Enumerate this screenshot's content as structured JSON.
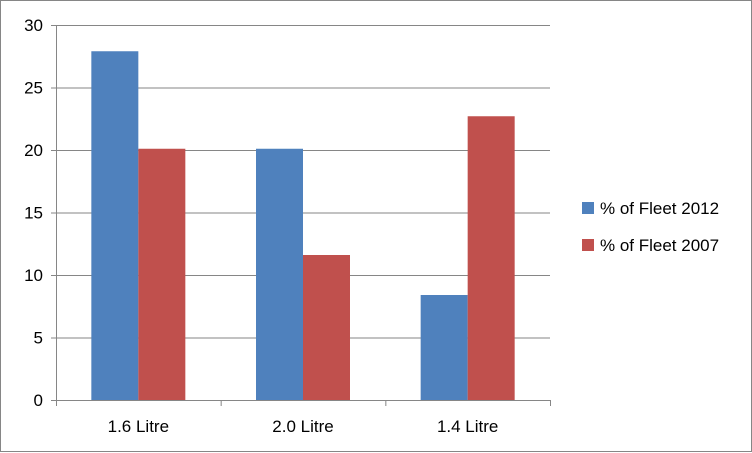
{
  "chart_data": {
    "type": "bar",
    "categories": [
      "1.6 Litre",
      "2.0 Litre",
      "1.4 Litre"
    ],
    "series": [
      {
        "name": "% of Fleet 2012",
        "values": [
          27.9,
          20.1,
          8.4
        ],
        "color": "#4F81BD"
      },
      {
        "name": "% of Fleet 2007",
        "values": [
          20.1,
          11.6,
          22.7
        ],
        "color": "#C0504D"
      }
    ],
    "ylim": [
      0,
      30
    ],
    "yticks": [
      "0",
      "5",
      "10",
      "15",
      "20",
      "25",
      "30"
    ],
    "grid": true,
    "legend": "right"
  }
}
